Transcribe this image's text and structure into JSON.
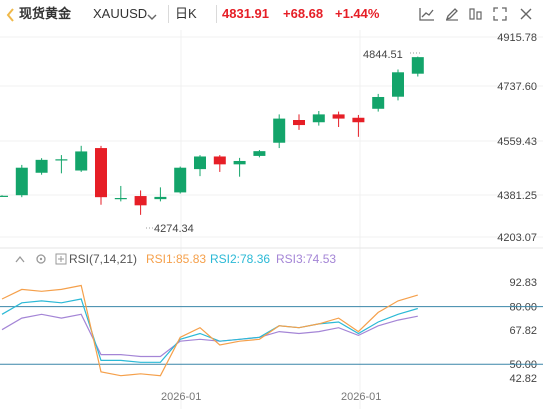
{
  "header": {
    "instrument_cn": "现货黄金",
    "symbol": "XAUUSD",
    "interval": "日K",
    "price": "4831.91",
    "change": "+68.68",
    "change_pct": "+1.44%"
  },
  "colors": {
    "up": "#13a46a",
    "down": "#e61e26",
    "rsi1": "#f5a04b",
    "rsi2": "#2bb9d6",
    "rsi3": "#a485d6"
  },
  "main_axis": [
    "4915.78",
    "4737.60",
    "4559.43",
    "4381.25",
    "4203.07"
  ],
  "annotations": {
    "high": "4844.51",
    "low": "4274.34"
  },
  "rsi": {
    "title": "RSI(7,14,21)",
    "rsi1": "RSI1:85.83",
    "rsi2": "RSI2:78.36",
    "rsi3": "RSI3:74.53",
    "axis": [
      "92.83",
      "80.00",
      "67.82",
      "50.00",
      "42.82"
    ]
  },
  "x_labels": [
    "2026-01",
    "2026-01"
  ],
  "chart_data": {
    "type": "candlestick",
    "price_range": [
      4203.07,
      4915.78
    ],
    "candles": [
      {
        "o": 4350,
        "c": 4350,
        "h": 4352,
        "l": 4348
      },
      {
        "o": 4352,
        "c": 4450,
        "h": 4460,
        "l": 4345
      },
      {
        "o": 4432,
        "c": 4478,
        "h": 4484,
        "l": 4425
      },
      {
        "o": 4480,
        "c": 4480,
        "h": 4495,
        "l": 4430
      },
      {
        "o": 4440,
        "c": 4508,
        "h": 4528,
        "l": 4435
      },
      {
        "o": 4520,
        "c": 4345,
        "h": 4528,
        "l": 4318
      },
      {
        "o": 4342,
        "c": 4342,
        "h": 4385,
        "l": 4330
      },
      {
        "o": 4349,
        "c": 4316,
        "h": 4369,
        "l": 4282
      },
      {
        "o": 4338,
        "c": 4346,
        "h": 4380,
        "l": 4330
      },
      {
        "o": 4362,
        "c": 4450,
        "h": 4454,
        "l": 4358
      },
      {
        "o": 4445,
        "c": 4490,
        "h": 4495,
        "l": 4420
      },
      {
        "o": 4490,
        "c": 4462,
        "h": 4495,
        "l": 4435
      },
      {
        "o": 4462,
        "c": 4474,
        "h": 4485,
        "l": 4418
      },
      {
        "o": 4492,
        "c": 4509,
        "h": 4513,
        "l": 4487
      },
      {
        "o": 4539,
        "c": 4625,
        "h": 4640,
        "l": 4520
      },
      {
        "o": 4620,
        "c": 4602,
        "h": 4640,
        "l": 4585
      },
      {
        "o": 4612,
        "c": 4640,
        "h": 4652,
        "l": 4600
      },
      {
        "o": 4640,
        "c": 4625,
        "h": 4650,
        "l": 4595
      },
      {
        "o": 4628,
        "c": 4612,
        "h": 4638,
        "l": 4560
      },
      {
        "o": 4660,
        "c": 4702,
        "h": 4713,
        "l": 4650
      },
      {
        "o": 4703,
        "c": 4790,
        "h": 4800,
        "l": 4690
      },
      {
        "o": 4785,
        "c": 4844,
        "h": 4846,
        "l": 4775
      }
    ],
    "rsi_range": [
      42.82,
      92.83
    ],
    "rsi1": [
      84,
      89,
      88,
      89,
      91,
      46,
      44,
      45,
      44,
      64,
      69,
      60,
      62,
      63,
      70,
      69,
      71,
      74,
      67,
      77,
      83,
      86
    ],
    "rsi2": [
      76,
      82,
      83,
      82,
      84,
      52,
      52,
      51,
      51,
      63,
      66,
      62,
      63,
      64,
      70,
      69,
      71,
      72,
      66,
      72,
      76,
      79
    ],
    "rsi3": [
      68,
      74,
      76,
      74,
      76,
      55,
      55,
      54,
      54,
      62,
      63,
      62,
      63,
      64,
      67,
      66,
      67,
      69,
      65,
      70,
      73,
      75
    ]
  }
}
